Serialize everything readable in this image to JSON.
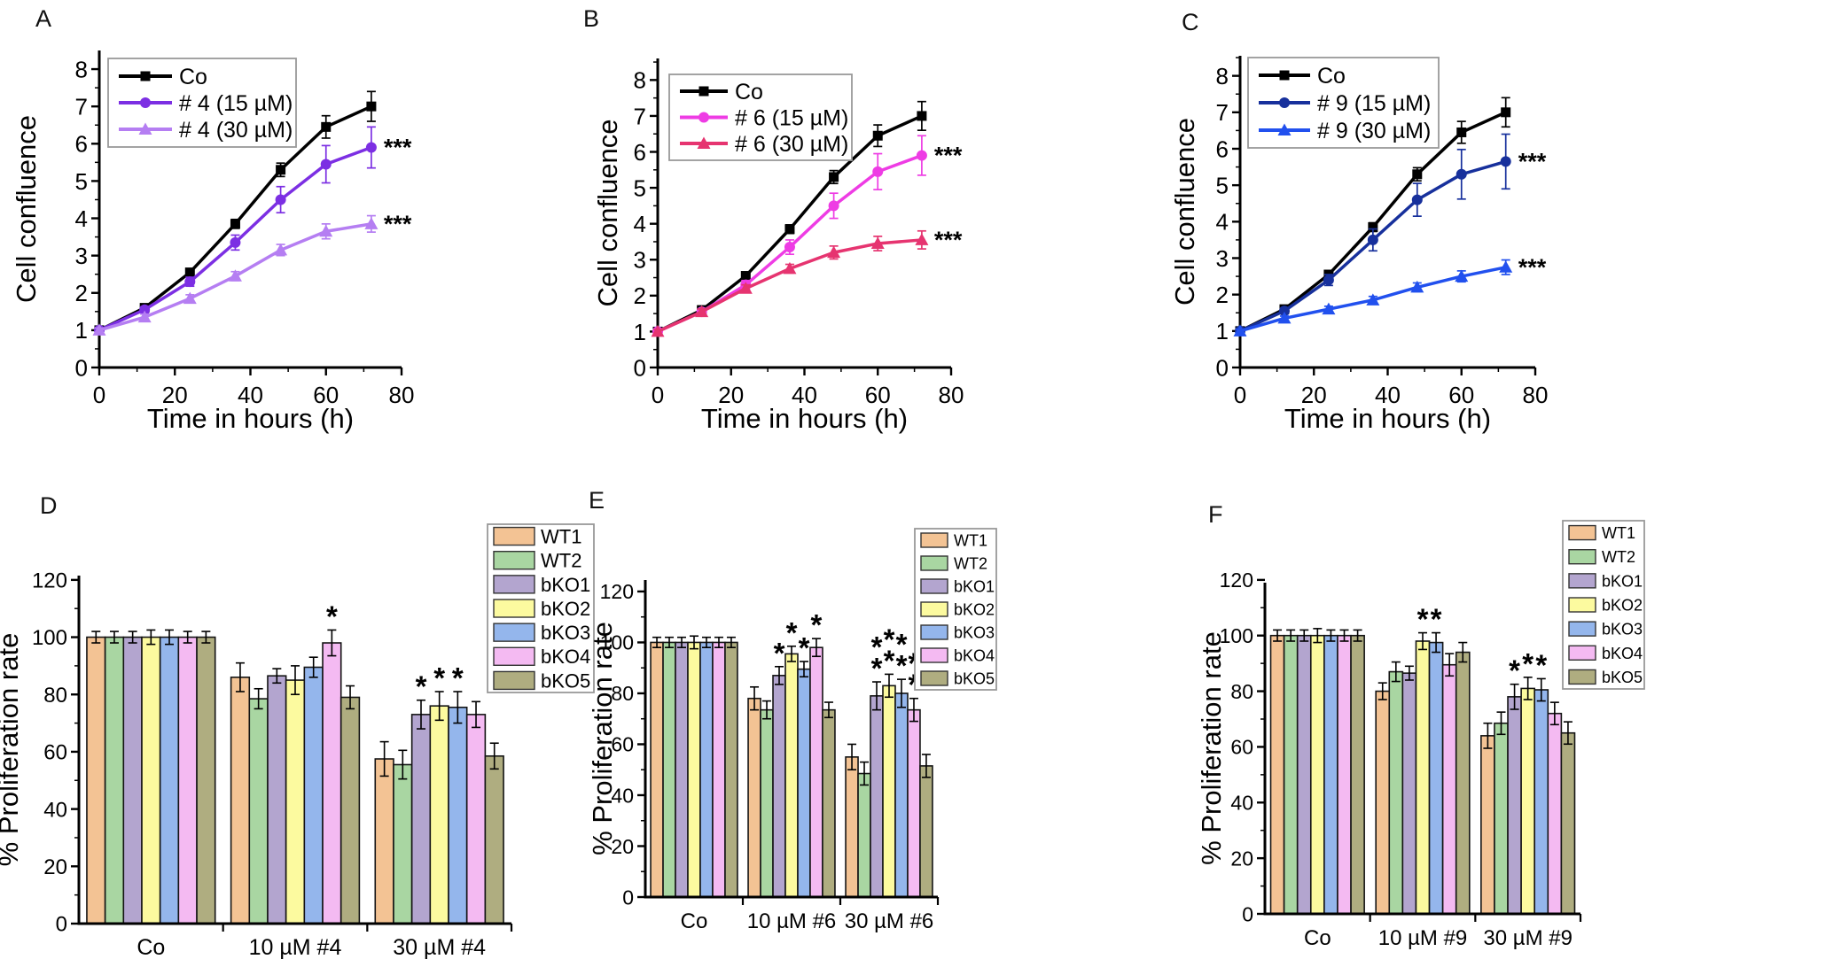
{
  "figure": {
    "panel_labels": {
      "A": "A",
      "B": "B",
      "C": "C",
      "D": "D",
      "E": "E",
      "F": "F"
    }
  },
  "chart_data": [
    {
      "panel": "A",
      "type": "line",
      "xlabel": "Time in hours (h)",
      "ylabel": "Cell confluence",
      "x": [
        0,
        12,
        24,
        36,
        48,
        60,
        72
      ],
      "xlim": [
        0,
        80
      ],
      "ylim": [
        0,
        8.5
      ],
      "xticks": [
        0,
        20,
        40,
        60,
        80
      ],
      "yticks": [
        0,
        1,
        2,
        3,
        4,
        5,
        6,
        7,
        8
      ],
      "x_minor": [
        10,
        30,
        50,
        70
      ],
      "y_minor_step": 0.5,
      "legend_position": "top-left",
      "grid": false,
      "series": [
        {
          "name": "Co",
          "marker": "square",
          "color": "#000000",
          "values": [
            1.0,
            1.6,
            2.55,
            3.85,
            5.3,
            6.45,
            7.0
          ],
          "err": [
            0.06,
            0.06,
            0.1,
            0.12,
            0.18,
            0.3,
            0.4
          ],
          "annotation": ""
        },
        {
          "name": "# 4 (15 µM)",
          "marker": "circle",
          "color": "#7C2FE3",
          "values": [
            1.0,
            1.55,
            2.3,
            3.35,
            4.5,
            5.45,
            5.9
          ],
          "err": [
            0.06,
            0.08,
            0.12,
            0.2,
            0.35,
            0.5,
            0.55
          ],
          "annotation": "***"
        },
        {
          "name": "# 4 (30 µM)",
          "marker": "triangle",
          "color": "#B57EF2",
          "values": [
            1.0,
            1.35,
            1.85,
            2.45,
            3.15,
            3.65,
            3.85
          ],
          "err": [
            0.06,
            0.08,
            0.1,
            0.12,
            0.15,
            0.2,
            0.22
          ],
          "annotation": "***"
        }
      ]
    },
    {
      "panel": "B",
      "type": "line",
      "xlabel": "Time in hours (h)",
      "ylabel": "Cell confluence",
      "x": [
        0,
        12,
        24,
        36,
        48,
        60,
        72
      ],
      "xlim": [
        0,
        80
      ],
      "ylim": [
        0,
        8.6
      ],
      "xticks": [
        0,
        20,
        40,
        60,
        80
      ],
      "yticks": [
        0,
        1,
        2,
        3,
        4,
        5,
        6,
        7,
        8
      ],
      "x_minor": [
        10,
        30,
        50,
        70
      ],
      "y_minor_step": 0.5,
      "legend_position": "top-left",
      "grid": false,
      "series": [
        {
          "name": "Co",
          "marker": "square",
          "color": "#000000",
          "values": [
            1.0,
            1.6,
            2.55,
            3.85,
            5.3,
            6.45,
            7.0
          ],
          "err": [
            0.06,
            0.06,
            0.1,
            0.12,
            0.18,
            0.3,
            0.4
          ],
          "annotation": ""
        },
        {
          "name": "# 6 (15 µM)",
          "marker": "circle",
          "color": "#EE3CE4",
          "values": [
            1.0,
            1.55,
            2.3,
            3.35,
            4.5,
            5.45,
            5.9
          ],
          "err": [
            0.06,
            0.08,
            0.12,
            0.2,
            0.35,
            0.5,
            0.55
          ],
          "annotation": "***"
        },
        {
          "name": "# 6 (30 µM)",
          "marker": "triangle",
          "color": "#E63470",
          "values": [
            1.0,
            1.55,
            2.2,
            2.75,
            3.2,
            3.45,
            3.55
          ],
          "err": [
            0.06,
            0.08,
            0.1,
            0.12,
            0.18,
            0.2,
            0.25
          ],
          "annotation": "***"
        }
      ]
    },
    {
      "panel": "C",
      "type": "line",
      "xlabel": "Time in hours (h)",
      "ylabel": "Cell confluence",
      "x": [
        0,
        12,
        24,
        36,
        48,
        60,
        72
      ],
      "xlim": [
        0,
        80
      ],
      "ylim": [
        0,
        8.55
      ],
      "xticks": [
        0,
        20,
        40,
        60,
        80
      ],
      "yticks": [
        0,
        1,
        2,
        3,
        4,
        5,
        6,
        7,
        8
      ],
      "x_minor": [
        10,
        30,
        50,
        70
      ],
      "y_minor_step": 0.5,
      "legend_position": "top-left",
      "grid": false,
      "series": [
        {
          "name": "Co",
          "marker": "square",
          "color": "#000000",
          "values": [
            1.0,
            1.6,
            2.55,
            3.85,
            5.3,
            6.45,
            7.0
          ],
          "err": [
            0.06,
            0.06,
            0.1,
            0.12,
            0.18,
            0.3,
            0.4
          ],
          "annotation": ""
        },
        {
          "name": "# 9 (15 µM)",
          "marker": "circle",
          "color": "#17309C",
          "values": [
            1.0,
            1.55,
            2.4,
            3.5,
            4.6,
            5.3,
            5.65
          ],
          "err": [
            0.06,
            0.08,
            0.15,
            0.3,
            0.45,
            0.68,
            0.75
          ],
          "annotation": "***"
        },
        {
          "name": "# 9 (30 µM)",
          "marker": "triangle",
          "color": "#2150EE",
          "values": [
            1.0,
            1.35,
            1.6,
            1.85,
            2.2,
            2.5,
            2.75
          ],
          "err": [
            0.05,
            0.06,
            0.08,
            0.1,
            0.12,
            0.15,
            0.2
          ],
          "annotation": "***"
        }
      ]
    },
    {
      "panel": "D",
      "type": "bar",
      "ylabel": "% Proliferation rate",
      "categories": [
        "Co",
        "10 µM #4",
        "30 µM #4"
      ],
      "ylim": [
        0,
        121.5
      ],
      "yticks": [
        0,
        20,
        40,
        60,
        80,
        100,
        120
      ],
      "y_minor_step": 10,
      "legend_position": "top-right",
      "grid": false,
      "series": [
        {
          "name": "WT1",
          "color": "#F3C394",
          "values": [
            100,
            86,
            57.5
          ],
          "err": [
            2,
            5,
            6
          ],
          "stars": [
            "",
            "",
            ""
          ]
        },
        {
          "name": "WT2",
          "color": "#A9D6A2",
          "values": [
            100,
            78.5,
            55.5
          ],
          "err": [
            2,
            3.5,
            5
          ],
          "stars": [
            "",
            "",
            ""
          ]
        },
        {
          "name": "bKO1",
          "color": "#B3A5CF",
          "values": [
            100,
            86.5,
            73
          ],
          "err": [
            2,
            2.5,
            5
          ],
          "stars": [
            "",
            "",
            "*"
          ]
        },
        {
          "name": "bKO2",
          "color": "#FCFA9F",
          "values": [
            100,
            85,
            76
          ],
          "err": [
            2.5,
            5,
            5
          ],
          "stars": [
            "",
            "",
            "*"
          ]
        },
        {
          "name": "bKO3",
          "color": "#94B6EC",
          "values": [
            100,
            89.5,
            75.5
          ],
          "err": [
            2.5,
            3.5,
            5.5
          ],
          "stars": [
            "",
            "",
            "*"
          ]
        },
        {
          "name": "bKO4",
          "color": "#F4BAF2",
          "values": [
            100,
            98,
            73
          ],
          "err": [
            2,
            4.5,
            4.5
          ],
          "stars": [
            "",
            "*",
            ""
          ]
        },
        {
          "name": "bKO5",
          "color": "#AFAD80",
          "values": [
            100,
            79,
            58.5
          ],
          "err": [
            2,
            4,
            4.5
          ],
          "stars": [
            "",
            "",
            ""
          ]
        }
      ]
    },
    {
      "panel": "E",
      "type": "bar",
      "ylabel": "% Proliferation rate",
      "categories": [
        "Co",
        "10 µM #6",
        "30 µM #6"
      ],
      "ylim": [
        0,
        124.5
      ],
      "yticks": [
        0,
        20,
        40,
        60,
        80,
        100,
        120
      ],
      "y_minor_step": 10,
      "legend_position": "top-right",
      "grid": false,
      "series": [
        {
          "name": "WT1",
          "color": "#F3C394",
          "values": [
            100,
            78,
            55
          ],
          "err": [
            2,
            4.5,
            5
          ],
          "stars": [
            "",
            "",
            ""
          ]
        },
        {
          "name": "WT2",
          "color": "#A9D6A2",
          "values": [
            100,
            73.5,
            48.5
          ],
          "err": [
            2,
            3.5,
            4.5
          ],
          "stars": [
            "",
            "",
            ""
          ]
        },
        {
          "name": "bKO1",
          "color": "#B3A5CF",
          "values": [
            100,
            87,
            79
          ],
          "err": [
            2,
            3.5,
            5.5
          ],
          "stars": [
            "",
            "*",
            "**"
          ]
        },
        {
          "name": "bKO2",
          "color": "#FCFA9F",
          "values": [
            100,
            95.5,
            83
          ],
          "err": [
            2.5,
            3,
            4.5
          ],
          "stars": [
            "",
            "*",
            "**"
          ]
        },
        {
          "name": "bKO3",
          "color": "#94B6EC",
          "values": [
            100,
            89.5,
            80
          ],
          "err": [
            2,
            3,
            5.5
          ],
          "stars": [
            "",
            "*",
            "**"
          ]
        },
        {
          "name": "bKO4",
          "color": "#F4BAF2",
          "values": [
            100,
            98,
            73.5
          ],
          "err": [
            2,
            3.5,
            4.5
          ],
          "stars": [
            "",
            "*",
            "**"
          ]
        },
        {
          "name": "bKO5",
          "color": "#AFAD80",
          "values": [
            100,
            73.5,
            51.5
          ],
          "err": [
            2,
            3,
            4.5
          ],
          "stars": [
            "",
            "",
            ""
          ]
        }
      ]
    },
    {
      "panel": "F",
      "type": "bar",
      "ylabel": "% Proliferation rate",
      "categories": [
        "Co",
        "10 µM #9",
        "30 µM #9"
      ],
      "ylim": [
        0,
        119
      ],
      "yticks": [
        0,
        20,
        40,
        60,
        80,
        100,
        120
      ],
      "y_minor_step": 10,
      "legend_position": "top-right",
      "grid": false,
      "series": [
        {
          "name": "WT1",
          "color": "#F3C394",
          "values": [
            100,
            80,
            64
          ],
          "err": [
            2,
            3,
            4.5
          ],
          "stars": [
            "",
            "",
            ""
          ]
        },
        {
          "name": "WT2",
          "color": "#A9D6A2",
          "values": [
            100,
            87,
            68.5
          ],
          "err": [
            2,
            3.5,
            4
          ],
          "stars": [
            "",
            "",
            ""
          ]
        },
        {
          "name": "bKO1",
          "color": "#B3A5CF",
          "values": [
            100,
            86.5,
            78
          ],
          "err": [
            2,
            2.5,
            4.5
          ],
          "stars": [
            "",
            "",
            "*"
          ]
        },
        {
          "name": "bKO2",
          "color": "#FCFA9F",
          "values": [
            100,
            98,
            81
          ],
          "err": [
            2.5,
            3,
            4
          ],
          "stars": [
            "",
            "*",
            "*"
          ]
        },
        {
          "name": "bKO3",
          "color": "#94B6EC",
          "values": [
            100,
            97.5,
            80.5
          ],
          "err": [
            2,
            3.5,
            4
          ],
          "stars": [
            "",
            "*",
            "*"
          ]
        },
        {
          "name": "bKO4",
          "color": "#F4BAF2",
          "values": [
            100,
            89.5,
            72
          ],
          "err": [
            2,
            4,
            4
          ],
          "stars": [
            "",
            "",
            ""
          ]
        },
        {
          "name": "bKO5",
          "color": "#AFAD80",
          "values": [
            100,
            94,
            65
          ],
          "err": [
            2,
            3.5,
            4
          ],
          "stars": [
            "",
            "",
            ""
          ]
        }
      ]
    }
  ]
}
